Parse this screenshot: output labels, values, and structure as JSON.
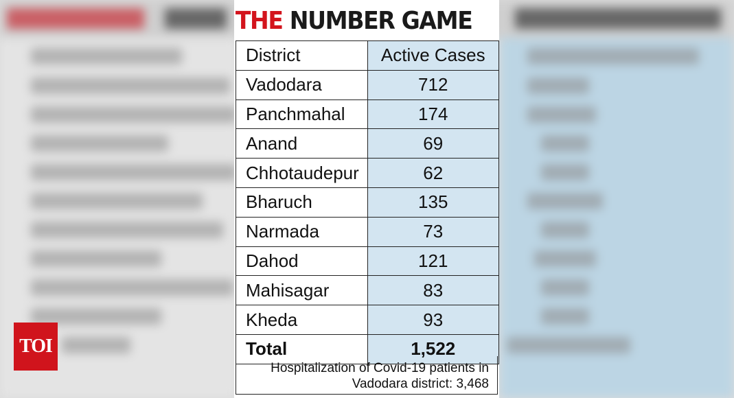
{
  "logo": "TOI",
  "title": {
    "part1": "THE",
    "part2": "NUMBER GAME"
  },
  "table": {
    "headers": [
      "District",
      "Active Cases"
    ],
    "rows": [
      [
        "Vadodara",
        "712"
      ],
      [
        "Panchmahal",
        "174"
      ],
      [
        "Anand",
        "69"
      ],
      [
        "Chhotaudepur",
        "62"
      ],
      [
        "Bharuch",
        "135"
      ],
      [
        "Narmada",
        "73"
      ],
      [
        "Dahod",
        "121"
      ],
      [
        "Mahisagar",
        "83"
      ],
      [
        "Kheda",
        "93"
      ]
    ],
    "total": [
      "Total",
      "1,522"
    ]
  },
  "footnote": {
    "line1": "Hospitalization of Covid-19 patients in",
    "line2": "Vadodara district: 3,468"
  },
  "colors": {
    "title_red": "#d3141d",
    "value_column": "#d3e5f1",
    "logo_red": "#d0141c"
  }
}
